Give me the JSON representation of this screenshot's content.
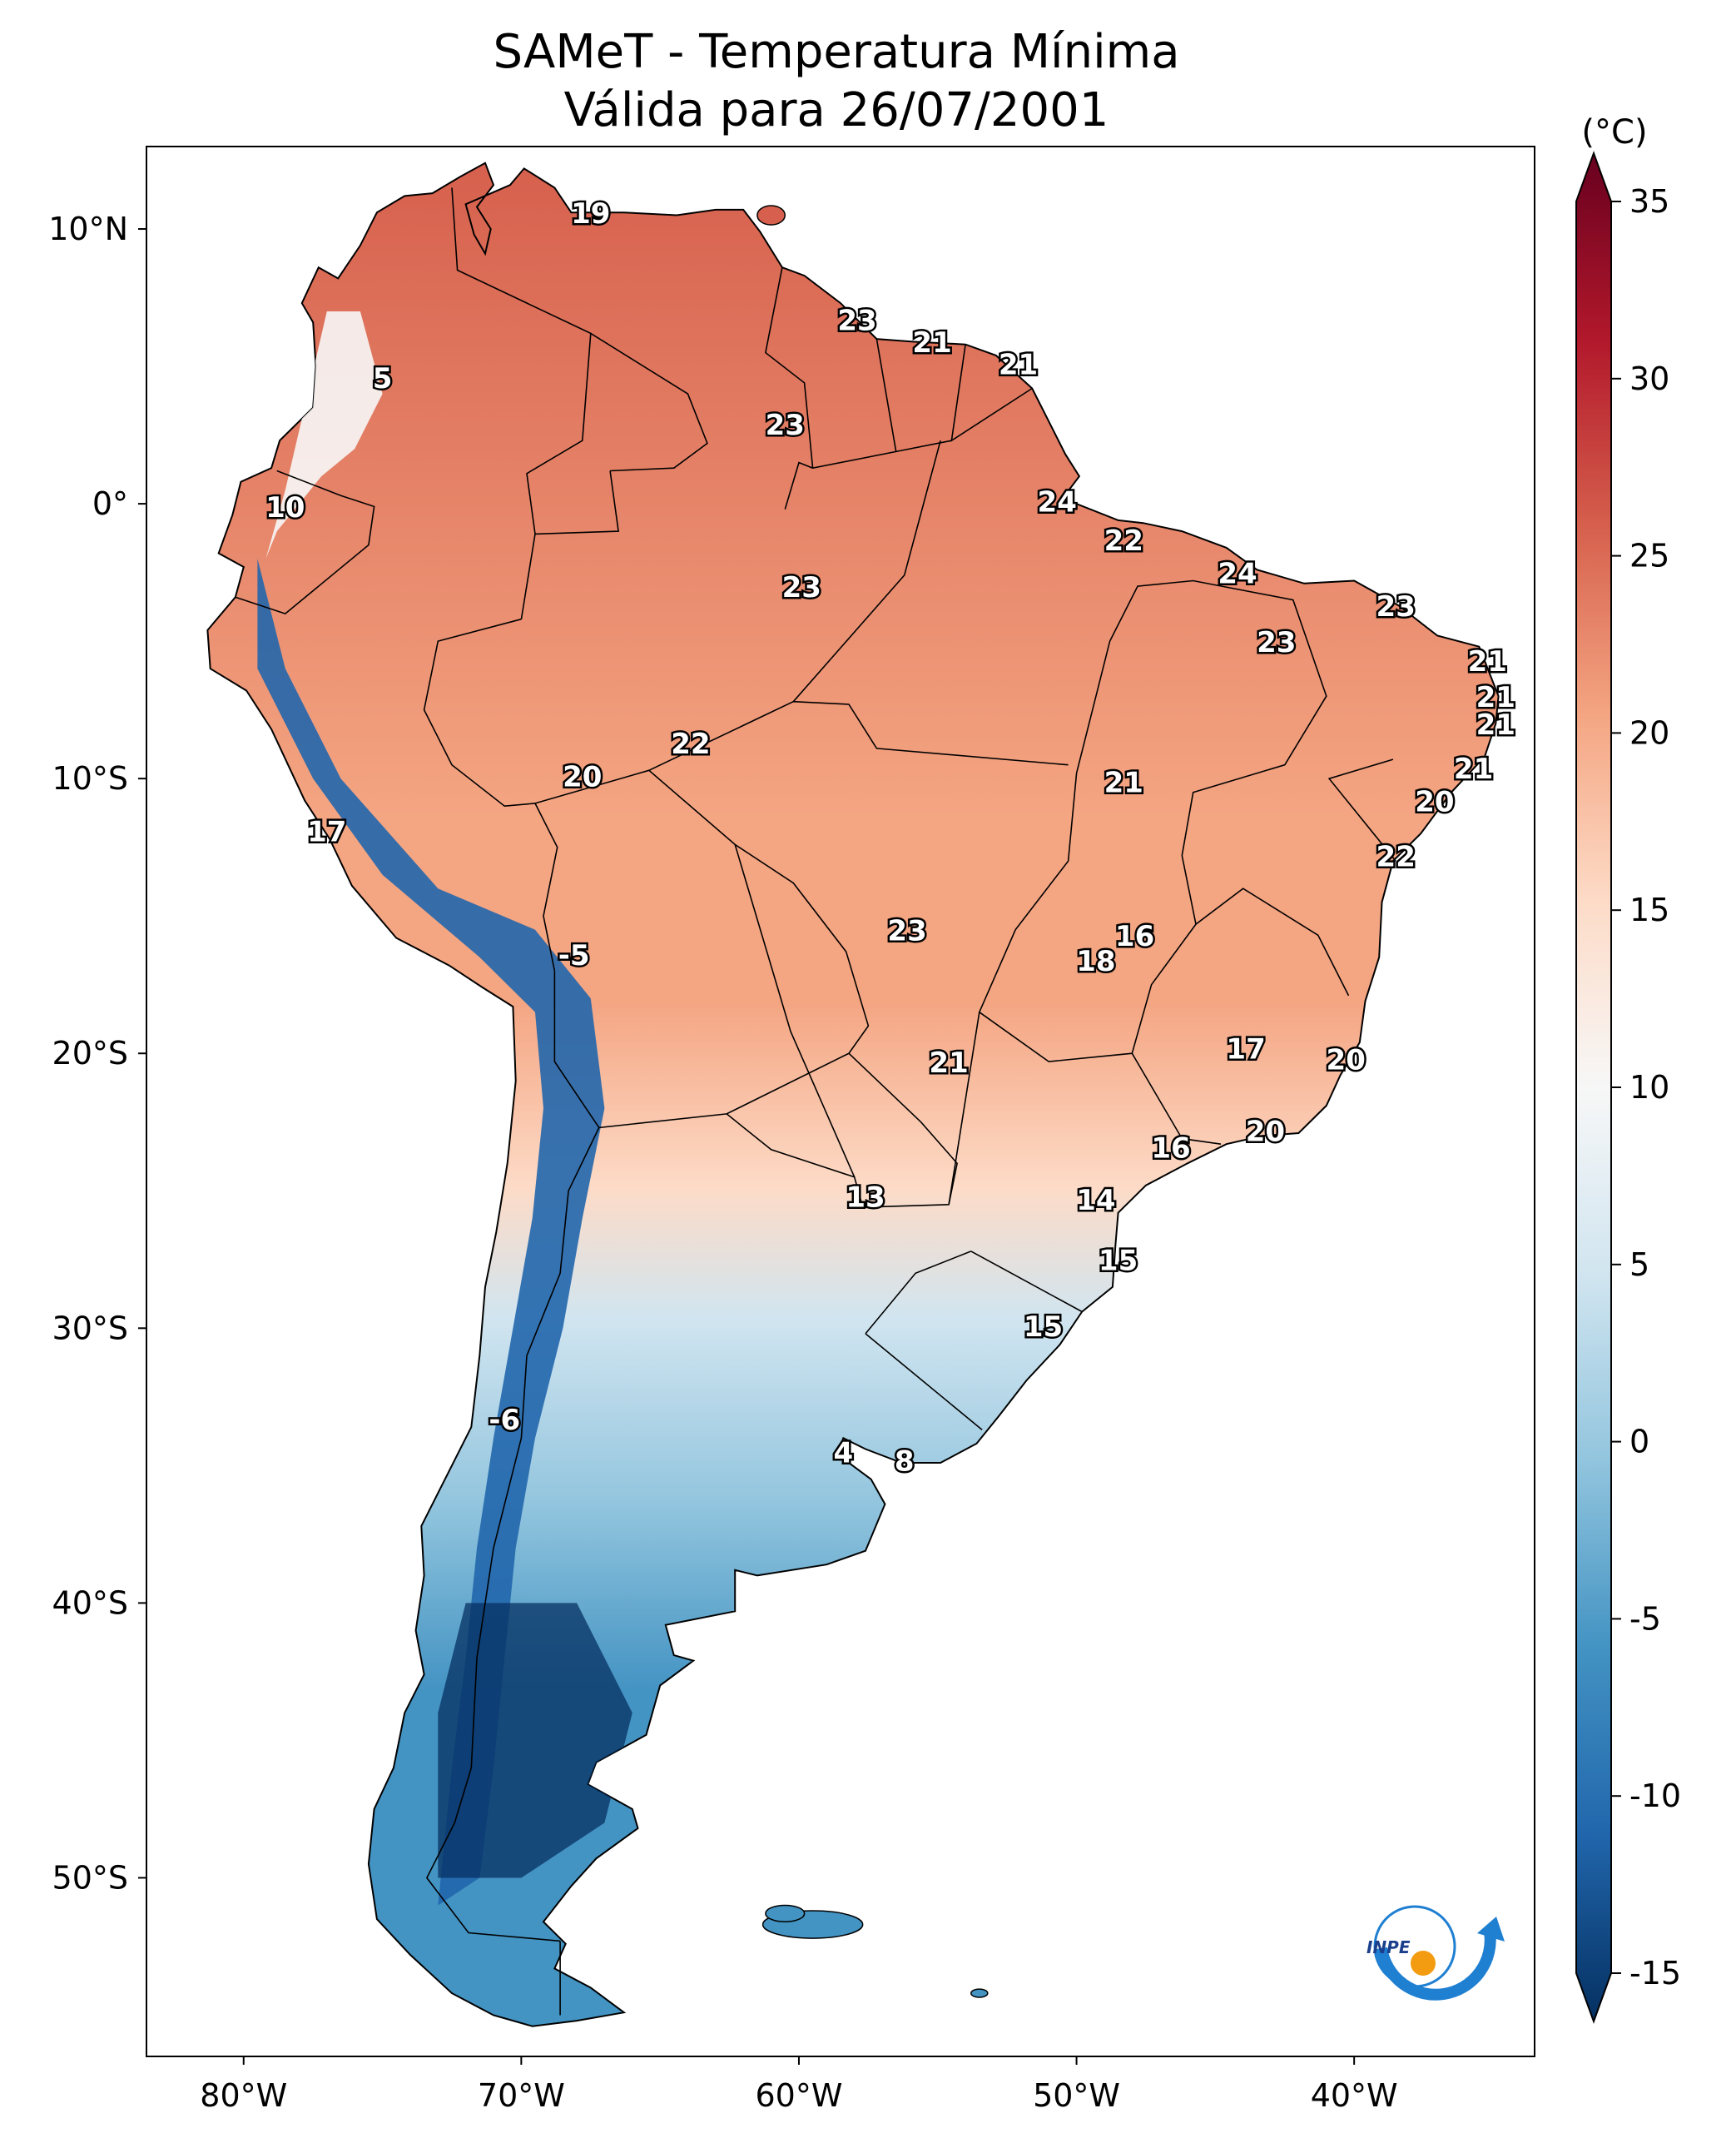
{
  "title": {
    "line1": "SAMeT - Temperatura Mínima",
    "line2": "Válida para 26/07/2001"
  },
  "axes": {
    "lat_ticks": [
      {
        "value": 10,
        "label": "10°N"
      },
      {
        "value": 0,
        "label": "0°"
      },
      {
        "value": -10,
        "label": "10°S"
      },
      {
        "value": -20,
        "label": "20°S"
      },
      {
        "value": -30,
        "label": "30°S"
      },
      {
        "value": -40,
        "label": "40°S"
      },
      {
        "value": -50,
        "label": "50°S"
      }
    ],
    "lon_ticks": [
      {
        "value": -80,
        "label": "80°W"
      },
      {
        "value": -70,
        "label": "70°W"
      },
      {
        "value": -60,
        "label": "60°W"
      },
      {
        "value": -50,
        "label": "50°W"
      },
      {
        "value": -40,
        "label": "40°W"
      }
    ],
    "lon_range": [
      -83.5,
      -33.5
    ],
    "lat_range": [
      -56.5,
      13
    ]
  },
  "colorbar": {
    "unit": "(°C)",
    "range": [
      -15,
      35
    ],
    "extend": "both",
    "colormap": "RdBu_r",
    "ticks": [
      {
        "value": 35,
        "label": "35"
      },
      {
        "value": 30,
        "label": "30"
      },
      {
        "value": 25,
        "label": "25"
      },
      {
        "value": 20,
        "label": "20"
      },
      {
        "value": 15,
        "label": "15"
      },
      {
        "value": 10,
        "label": "10"
      },
      {
        "value": 5,
        "label": "5"
      },
      {
        "value": 0,
        "label": "0"
      },
      {
        "value": -5,
        "label": "-5"
      },
      {
        "value": -10,
        "label": "-10"
      },
      {
        "value": -15,
        "label": "-15"
      }
    ],
    "colors": [
      "#053061",
      "#2166ac",
      "#4393c3",
      "#92c5de",
      "#d1e5f0",
      "#f7f7f7",
      "#fddbc7",
      "#f4a582",
      "#d6604d",
      "#b2182b",
      "#67001f"
    ]
  },
  "station_values": [
    {
      "lon": -67.5,
      "lat": 10.5,
      "text": "19"
    },
    {
      "lon": -75.0,
      "lat": 4.5,
      "text": "5"
    },
    {
      "lon": -57.9,
      "lat": 6.6,
      "text": "23"
    },
    {
      "lon": -55.2,
      "lat": 5.8,
      "text": "21"
    },
    {
      "lon": -52.1,
      "lat": 5.0,
      "text": "21"
    },
    {
      "lon": -60.5,
      "lat": 2.8,
      "text": "23"
    },
    {
      "lon": -78.5,
      "lat": -0.2,
      "text": "10"
    },
    {
      "lon": -50.7,
      "lat": 0.0,
      "text": "24"
    },
    {
      "lon": -48.3,
      "lat": -1.4,
      "text": "22"
    },
    {
      "lon": -59.9,
      "lat": -3.1,
      "text": "23"
    },
    {
      "lon": -44.2,
      "lat": -2.6,
      "text": "24"
    },
    {
      "lon": -38.5,
      "lat": -3.8,
      "text": "23"
    },
    {
      "lon": -42.8,
      "lat": -5.1,
      "text": "23"
    },
    {
      "lon": -35.2,
      "lat": -5.8,
      "text": "21"
    },
    {
      "lon": -34.9,
      "lat": -7.1,
      "text": "21"
    },
    {
      "lon": -34.9,
      "lat": -8.1,
      "text": "21"
    },
    {
      "lon": -35.7,
      "lat": -9.7,
      "text": "21"
    },
    {
      "lon": -63.9,
      "lat": -8.8,
      "text": "22"
    },
    {
      "lon": -67.8,
      "lat": -10.0,
      "text": "20"
    },
    {
      "lon": -48.3,
      "lat": -10.2,
      "text": "21"
    },
    {
      "lon": -37.1,
      "lat": -10.9,
      "text": "20"
    },
    {
      "lon": -38.5,
      "lat": -12.9,
      "text": "22"
    },
    {
      "lon": -77.0,
      "lat": -12.0,
      "text": "17"
    },
    {
      "lon": -56.1,
      "lat": -15.6,
      "text": "23"
    },
    {
      "lon": -47.9,
      "lat": -15.8,
      "text": "16"
    },
    {
      "lon": -49.3,
      "lat": -16.7,
      "text": "18"
    },
    {
      "lon": -68.1,
      "lat": -16.5,
      "text": "-5"
    },
    {
      "lon": -43.9,
      "lat": -19.9,
      "text": "17"
    },
    {
      "lon": -40.3,
      "lat": -20.3,
      "text": "20"
    },
    {
      "lon": -54.6,
      "lat": -20.4,
      "text": "21"
    },
    {
      "lon": -43.2,
      "lat": -22.9,
      "text": "20"
    },
    {
      "lon": -46.6,
      "lat": -23.5,
      "text": "16"
    },
    {
      "lon": -57.6,
      "lat": -25.3,
      "text": "13"
    },
    {
      "lon": -49.3,
      "lat": -25.4,
      "text": "14"
    },
    {
      "lon": -48.5,
      "lat": -27.6,
      "text": "15"
    },
    {
      "lon": -51.2,
      "lat": -30.0,
      "text": "15"
    },
    {
      "lon": -70.6,
      "lat": -33.4,
      "text": "-6"
    },
    {
      "lon": -58.4,
      "lat": -34.6,
      "text": "4"
    },
    {
      "lon": -56.2,
      "lat": -34.9,
      "text": "8"
    }
  ],
  "logo": {
    "text": "INPE"
  }
}
